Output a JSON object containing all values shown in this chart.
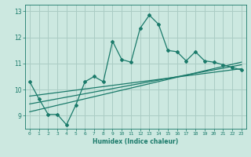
{
  "title": "",
  "xlabel": "Humidex (Indice chaleur)",
  "ylabel": "",
  "xlim": [
    -0.5,
    23.5
  ],
  "ylim": [
    8.5,
    13.25
  ],
  "yticks": [
    9,
    10,
    11,
    12,
    13
  ],
  "xticks": [
    0,
    1,
    2,
    3,
    4,
    5,
    6,
    7,
    8,
    9,
    10,
    11,
    12,
    13,
    14,
    15,
    16,
    17,
    18,
    19,
    20,
    21,
    22,
    23
  ],
  "bg_color": "#cce8e0",
  "line_color": "#1a7a6a",
  "grid_color": "#aaccc4",
  "scatter_x": [
    0,
    1,
    2,
    3,
    4,
    5,
    6,
    7,
    8,
    9,
    10,
    11,
    12,
    13,
    14,
    15,
    16,
    17,
    18,
    19,
    20,
    21,
    22,
    23
  ],
  "scatter_y": [
    10.3,
    9.65,
    9.05,
    9.05,
    8.65,
    9.4,
    10.3,
    10.5,
    10.3,
    11.85,
    11.15,
    11.05,
    12.35,
    12.85,
    12.5,
    11.5,
    11.45,
    11.1,
    11.45,
    11.1,
    11.05,
    10.95,
    10.85,
    10.75
  ],
  "reg_line1_x": [
    0,
    23
  ],
  "reg_line1_y": [
    9.15,
    11.05
  ],
  "reg_line2_x": [
    0,
    23
  ],
  "reg_line2_y": [
    9.45,
    10.95
  ],
  "reg_line3_x": [
    0,
    23
  ],
  "reg_line3_y": [
    9.75,
    10.8
  ]
}
